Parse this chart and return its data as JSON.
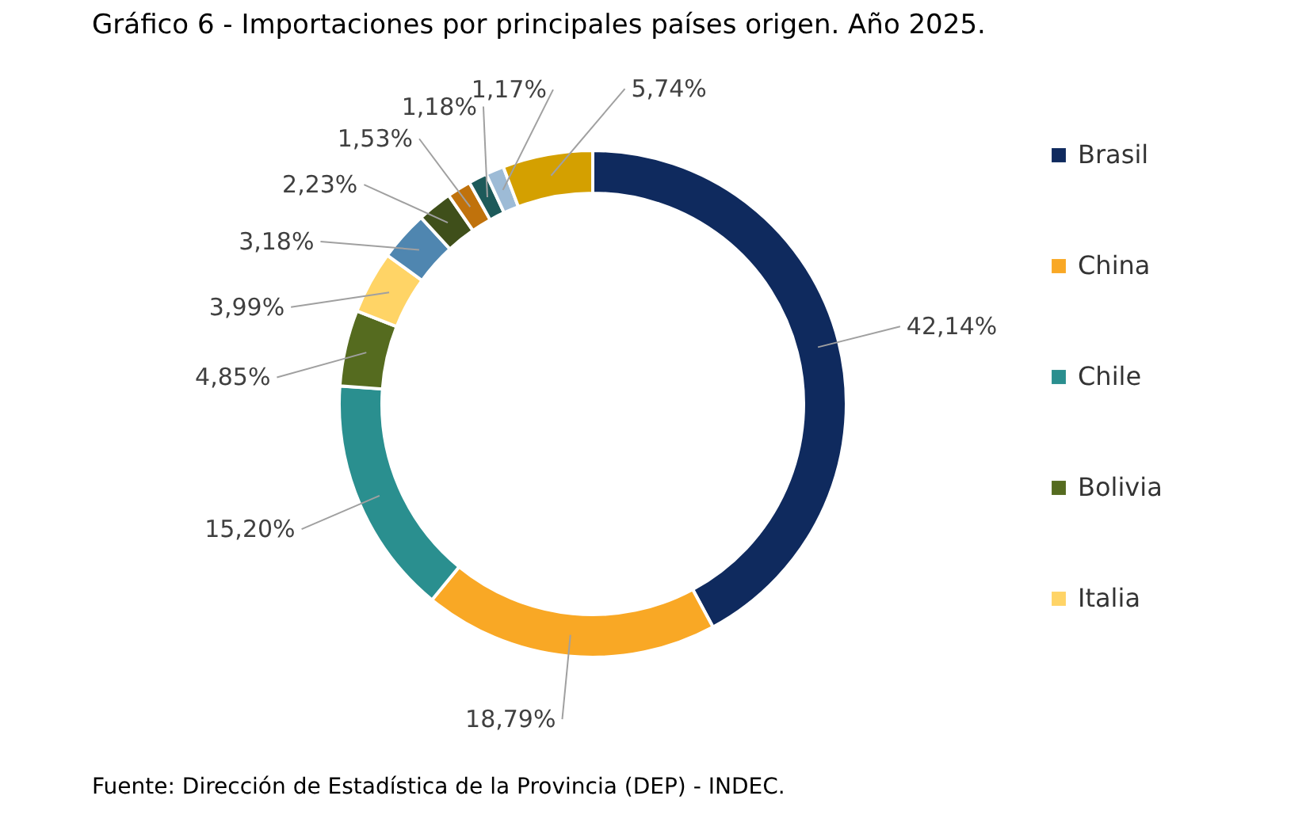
{
  "chart_data": {
    "type": "donut",
    "title": "Gráfico 6 - Importaciones por principales países origen. Año 2025.",
    "categories": [
      "Brasil",
      "China",
      "Chile",
      "Bolivia",
      "Italia",
      null,
      null,
      null,
      null,
      null,
      null
    ],
    "values": [
      42.14,
      18.79,
      15.2,
      4.85,
      3.99,
      3.18,
      2.23,
      1.53,
      1.18,
      1.17,
      5.74
    ],
    "value_labels": [
      "42,14%",
      "18,79%",
      "15,20%",
      "4,85%",
      "3,99%",
      "3,18%",
      "2,23%",
      "1,53%",
      "1,18%",
      "1,17%",
      "5,74%"
    ],
    "colors": [
      "#0f2a5e",
      "#f9a825",
      "#2a8f8f",
      "#556b1f",
      "#ffd466",
      "#4f86b0",
      "#3f4f1a",
      "#c0720c",
      "#1d5a5a",
      "#9dbbd6",
      "#d4a000"
    ],
    "legend": "right",
    "annotations": [
      "Fuente: Dirección de Estadística de la Provincia (DEP) - INDEC."
    ]
  }
}
